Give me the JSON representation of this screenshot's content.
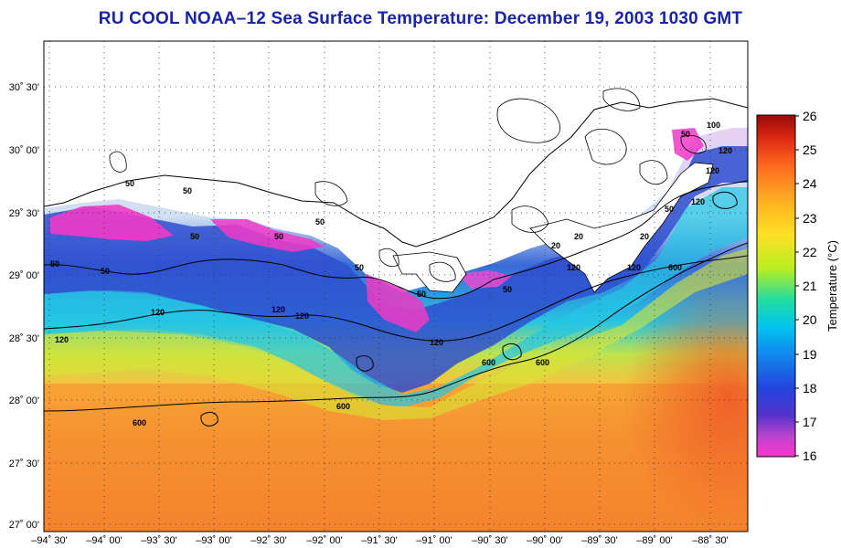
{
  "title": "RU COOL  NOAA–12  Sea Surface Temperature:  December 19, 2003 1030 GMT",
  "map": {
    "lat_labels": [
      "30˚ 30'",
      "30˚ 00'",
      "29˚ 30'",
      "29˚ 00'",
      "28˚ 30'",
      "28˚ 00'",
      "27˚ 30'",
      "27˚ 00'"
    ],
    "lon_labels": [
      "–94˚ 30'",
      "–94˚ 00'",
      "–93˚ 30'",
      "–93˚ 00'",
      "–92˚ 30'",
      "–92˚ 00'",
      "–91˚ 30'",
      "–91˚ 00'",
      "–90˚ 30'",
      "–90˚ 00'",
      "–89˚ 30'",
      "–89˚ 00'",
      "–88˚ 30'"
    ],
    "isobath_labels": [
      "50",
      "50",
      "50",
      "50",
      "50",
      "50",
      "50",
      "50",
      "50",
      "50",
      "50",
      "50",
      "120",
      "120",
      "120",
      "120",
      "120",
      "120",
      "120",
      "120",
      "120",
      "120",
      "600",
      "600",
      "600",
      "600",
      "600",
      "20",
      "20",
      "20",
      "100"
    ]
  },
  "colorbar": {
    "ticks": [
      "26",
      "25",
      "24",
      "23",
      "22",
      "21",
      "20",
      "19",
      "18",
      "17",
      "16"
    ],
    "label": "Temperature (°C)",
    "range": [
      16,
      26
    ],
    "colors": [
      "#ff33cc",
      "#8844cc",
      "#2233cc",
      "#1166ee",
      "#00bbee",
      "#22ddaa",
      "#ccee22",
      "#ffdd22",
      "#ffaa22",
      "#ff6622",
      "#dd2211",
      "#aa0a0a"
    ]
  }
}
